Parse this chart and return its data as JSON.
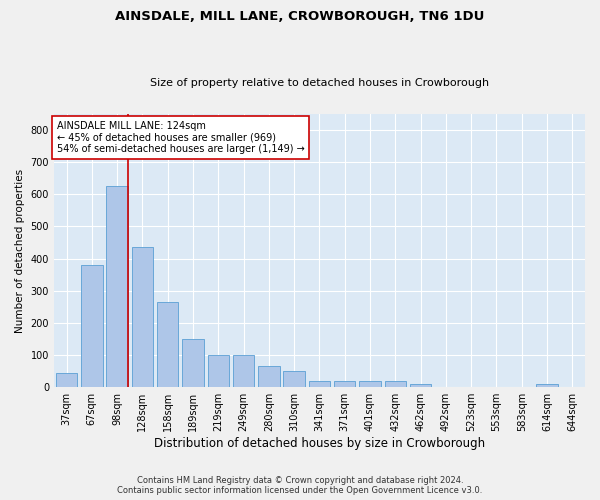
{
  "title": "AINSDALE, MILL LANE, CROWBOROUGH, TN6 1DU",
  "subtitle": "Size of property relative to detached houses in Crowborough",
  "xlabel": "Distribution of detached houses by size in Crowborough",
  "ylabel": "Number of detached properties",
  "bar_labels": [
    "37sqm",
    "67sqm",
    "98sqm",
    "128sqm",
    "158sqm",
    "189sqm",
    "219sqm",
    "249sqm",
    "280sqm",
    "310sqm",
    "341sqm",
    "371sqm",
    "401sqm",
    "432sqm",
    "462sqm",
    "492sqm",
    "523sqm",
    "553sqm",
    "583sqm",
    "614sqm",
    "644sqm"
  ],
  "bar_values": [
    45,
    380,
    625,
    435,
    265,
    150,
    100,
    100,
    65,
    50,
    20,
    20,
    20,
    20,
    10,
    0,
    0,
    0,
    0,
    10,
    0
  ],
  "bar_color": "#aec6e8",
  "bar_edge_color": "#5a9fd4",
  "bg_color": "#dce9f5",
  "grid_color": "#ffffff",
  "vline_color": "#cc0000",
  "vline_pos": 2.43,
  "annotation_text": "AINSDALE MILL LANE: 124sqm\n← 45% of detached houses are smaller (969)\n54% of semi-detached houses are larger (1,149) →",
  "annotation_box_color": "#ffffff",
  "annotation_box_edge": "#cc0000",
  "ylim": [
    0,
    850
  ],
  "yticks": [
    0,
    100,
    200,
    300,
    400,
    500,
    600,
    700,
    800
  ],
  "title_fontsize": 9.5,
  "subtitle_fontsize": 8.0,
  "xlabel_fontsize": 8.5,
  "ylabel_fontsize": 7.5,
  "tick_fontsize": 7.0,
  "annot_fontsize": 7.0,
  "footer_fontsize": 6.0,
  "footer": "Contains HM Land Registry data © Crown copyright and database right 2024.\nContains public sector information licensed under the Open Government Licence v3.0.",
  "fig_facecolor": "#f0f0f0"
}
